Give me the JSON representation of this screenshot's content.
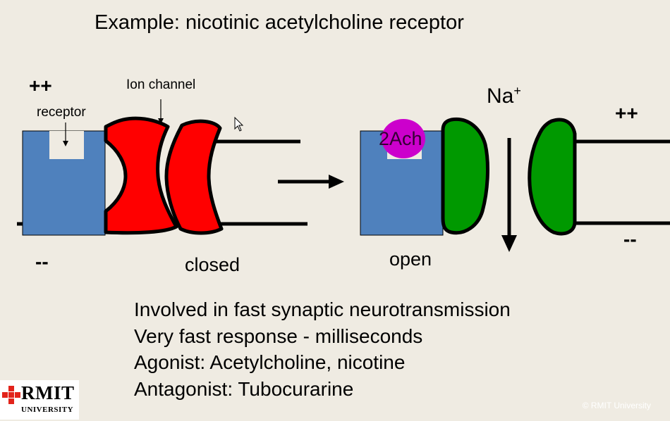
{
  "title": "Example:  nicotinic acetylcholine receptor",
  "diagram": {
    "closed_state": {
      "charge_top": "++",
      "charge_bottom": "--",
      "receptor_label": "receptor",
      "ion_channel_label": "Ion channel",
      "state_label": "closed"
    },
    "open_state": {
      "ligand_label": "2Ach",
      "ion_label": "Na",
      "ion_charge": "+",
      "charge_top": "++",
      "charge_bottom": "--",
      "state_label": "open"
    },
    "colors": {
      "receptor": "#4f81bd",
      "closed_channel": "#ff0000",
      "open_channel": "#009900",
      "ligand": "#cc00cc",
      "binding_site": "#efebe2"
    }
  },
  "bullets": [
    "Involved in fast synaptic neurotransmission",
    "Very fast response - milliseconds",
    "Agonist: Acetylcholine, nicotine",
    "Antagonist: Tubocurarine"
  ],
  "logo": {
    "name": "RMIT",
    "subtitle": "UNIVERSITY"
  },
  "copyright": "© RMIT University"
}
